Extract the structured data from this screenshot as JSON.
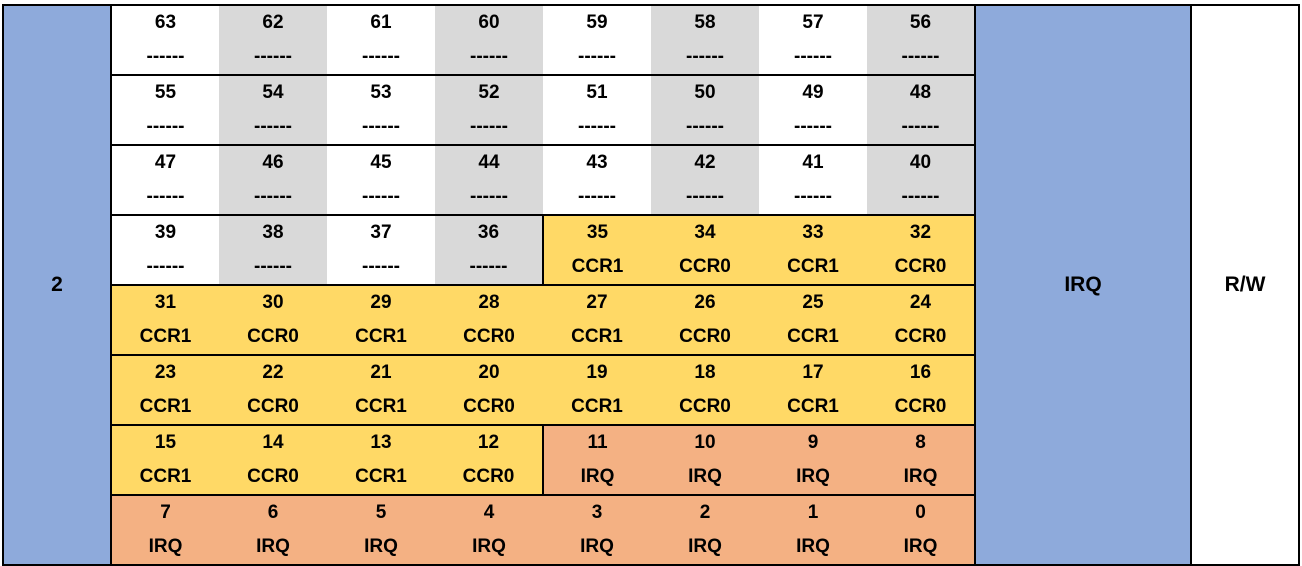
{
  "register": {
    "id": "2",
    "type": "IRQ",
    "access": "R/W"
  },
  "colors": {
    "white": "#ffffff",
    "gray": "#d9d9d9",
    "yellow": "#ffd966",
    "orange": "#f4b183",
    "blue": "#8eaadb"
  },
  "rows": [
    [
      [
        "63",
        "------",
        "white"
      ],
      [
        "62",
        "------",
        "gray"
      ],
      [
        "61",
        "------",
        "white"
      ],
      [
        "60",
        "------",
        "gray"
      ],
      [
        "59",
        "------",
        "white"
      ],
      [
        "58",
        "------",
        "gray"
      ],
      [
        "57",
        "------",
        "white"
      ],
      [
        "56",
        "------",
        "gray"
      ]
    ],
    [
      [
        "55",
        "------",
        "white"
      ],
      [
        "54",
        "------",
        "gray"
      ],
      [
        "53",
        "------",
        "white"
      ],
      [
        "52",
        "------",
        "gray"
      ],
      [
        "51",
        "------",
        "white"
      ],
      [
        "50",
        "------",
        "gray"
      ],
      [
        "49",
        "------",
        "white"
      ],
      [
        "48",
        "------",
        "gray"
      ]
    ],
    [
      [
        "47",
        "------",
        "white"
      ],
      [
        "46",
        "------",
        "gray"
      ],
      [
        "45",
        "------",
        "white"
      ],
      [
        "44",
        "------",
        "gray"
      ],
      [
        "43",
        "------",
        "white"
      ],
      [
        "42",
        "------",
        "gray"
      ],
      [
        "41",
        "------",
        "white"
      ],
      [
        "40",
        "------",
        "gray"
      ]
    ],
    [
      [
        "39",
        "------",
        "white"
      ],
      [
        "38",
        "------",
        "gray"
      ],
      [
        "37",
        "------",
        "white"
      ],
      [
        "36",
        "------",
        "gray"
      ],
      [
        "35",
        "CCR1",
        "yellow"
      ],
      [
        "34",
        "CCR0",
        "yellow"
      ],
      [
        "33",
        "CCR1",
        "yellow"
      ],
      [
        "32",
        "CCR0",
        "yellow"
      ]
    ],
    [
      [
        "31",
        "CCR1",
        "yellow"
      ],
      [
        "30",
        "CCR0",
        "yellow"
      ],
      [
        "29",
        "CCR1",
        "yellow"
      ],
      [
        "28",
        "CCR0",
        "yellow"
      ],
      [
        "27",
        "CCR1",
        "yellow"
      ],
      [
        "26",
        "CCR0",
        "yellow"
      ],
      [
        "25",
        "CCR1",
        "yellow"
      ],
      [
        "24",
        "CCR0",
        "yellow"
      ]
    ],
    [
      [
        "23",
        "CCR1",
        "yellow"
      ],
      [
        "22",
        "CCR0",
        "yellow"
      ],
      [
        "21",
        "CCR1",
        "yellow"
      ],
      [
        "20",
        "CCR0",
        "yellow"
      ],
      [
        "19",
        "CCR1",
        "yellow"
      ],
      [
        "18",
        "CCR0",
        "yellow"
      ],
      [
        "17",
        "CCR1",
        "yellow"
      ],
      [
        "16",
        "CCR0",
        "yellow"
      ]
    ],
    [
      [
        "15",
        "CCR1",
        "yellow"
      ],
      [
        "14",
        "CCR0",
        "yellow"
      ],
      [
        "13",
        "CCR1",
        "yellow"
      ],
      [
        "12",
        "CCR0",
        "yellow"
      ],
      [
        "11",
        "IRQ",
        "orange"
      ],
      [
        "10",
        "IRQ",
        "orange"
      ],
      [
        "9",
        "IRQ",
        "orange"
      ],
      [
        "8",
        "IRQ",
        "orange"
      ]
    ],
    [
      [
        "7",
        "IRQ",
        "orange"
      ],
      [
        "6",
        "IRQ",
        "orange"
      ],
      [
        "5",
        "IRQ",
        "orange"
      ],
      [
        "4",
        "IRQ",
        "orange"
      ],
      [
        "3",
        "IRQ",
        "orange"
      ],
      [
        "2",
        "IRQ",
        "orange"
      ],
      [
        "1",
        "IRQ",
        "orange"
      ],
      [
        "0",
        "IRQ",
        "orange"
      ]
    ]
  ]
}
